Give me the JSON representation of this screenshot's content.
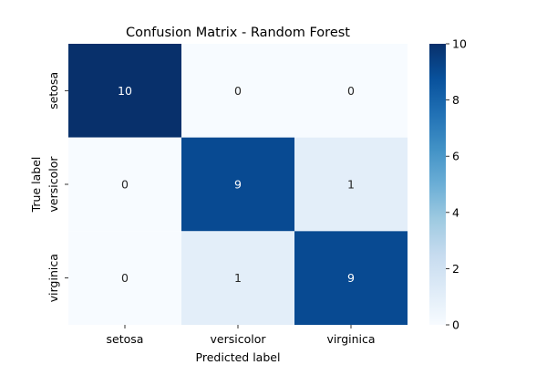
{
  "chart_data": {
    "type": "heatmap",
    "title": "Confusion Matrix - Random Forest",
    "xlabel": "Predicted label",
    "ylabel": "True label",
    "x_categories": [
      "setosa",
      "versicolor",
      "virginica"
    ],
    "y_categories": [
      "setosa",
      "versicolor",
      "virginica"
    ],
    "matrix": [
      [
        10,
        0,
        0
      ],
      [
        0,
        9,
        1
      ],
      [
        0,
        1,
        9
      ]
    ],
    "colormap": "Blues",
    "colorbar": {
      "range": [
        0,
        10
      ],
      "ticks": [
        "0",
        "2",
        "4",
        "6",
        "8",
        "10"
      ]
    }
  }
}
